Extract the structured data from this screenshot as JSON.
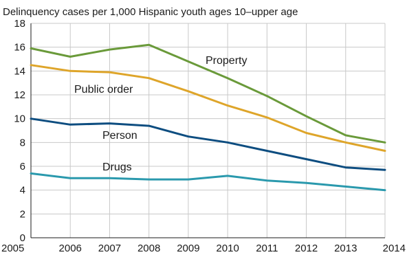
{
  "chart_data": {
    "type": "line",
    "title": "Delinquency cases per 1,000 Hispanic youth ages 10–upper age",
    "xlabel": "",
    "ylabel": "",
    "x": [
      "2005",
      "2006",
      "2007",
      "2008",
      "2009",
      "2010",
      "2011",
      "2012",
      "2013",
      "2014"
    ],
    "ylim": [
      0,
      18
    ],
    "yticks": [
      "0",
      "2",
      "4",
      "6",
      "8",
      "10",
      "12",
      "14",
      "16",
      "18"
    ],
    "grid": true,
    "legend": "inline labels",
    "series": [
      {
        "name": "Property",
        "color": "#6a9a3a",
        "values": [
          15.9,
          15.2,
          15.8,
          16.2,
          14.8,
          13.4,
          11.9,
          10.2,
          8.6,
          8.0
        ]
      },
      {
        "name": "Public order",
        "color": "#dea52a",
        "values": [
          14.5,
          14.0,
          13.9,
          13.4,
          12.3,
          11.1,
          10.1,
          8.8,
          8.0,
          7.3
        ]
      },
      {
        "name": "Person",
        "color": "#0d4d80",
        "values": [
          10.0,
          9.5,
          9.6,
          9.4,
          8.5,
          8.0,
          7.3,
          6.6,
          5.9,
          5.7
        ]
      },
      {
        "name": "Drugs",
        "color": "#2a99ad",
        "values": [
          5.4,
          5.0,
          5.0,
          4.9,
          4.9,
          5.2,
          4.8,
          4.6,
          4.3,
          4.0
        ]
      }
    ]
  }
}
